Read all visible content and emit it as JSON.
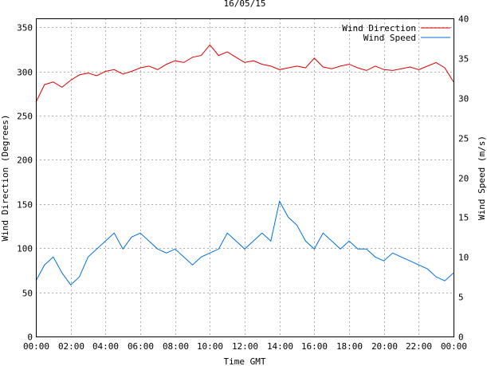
{
  "chart_data": {
    "type": "line",
    "title": "16/05/15",
    "xlabel": "Time GMT",
    "ylabel_left": "Wind Direction (Degrees)",
    "ylabel_right": "Wind Speed (m/s)",
    "x_ticks": [
      "00:00",
      "02:00",
      "04:00",
      "06:00",
      "08:00",
      "10:00",
      "12:00",
      "14:00",
      "16:00",
      "18:00",
      "20:00",
      "22:00",
      "00:00"
    ],
    "x_range_hours": [
      0,
      24
    ],
    "y_left_range": [
      0,
      360
    ],
    "y_left_ticks": [
      0,
      50,
      100,
      150,
      200,
      250,
      300,
      350
    ],
    "y_right_range": [
      0,
      40
    ],
    "y_right_ticks": [
      0,
      5,
      10,
      15,
      20,
      25,
      30,
      35,
      40
    ],
    "grid": true,
    "legend_position": "top-right",
    "series": [
      {
        "name": "Wind Direction",
        "axis": "left",
        "color": "#dd0000",
        "x_hours": [
          0,
          0.5,
          1,
          1.5,
          2,
          2.5,
          3,
          3.5,
          4,
          4.5,
          5,
          5.5,
          6,
          6.5,
          7,
          7.5,
          8,
          8.5,
          9,
          9.5,
          10,
          10.5,
          11,
          11.5,
          12,
          12.5,
          13,
          13.5,
          14,
          14.5,
          15,
          15.5,
          16,
          16.5,
          17,
          17.5,
          18,
          18.5,
          19,
          19.5,
          20,
          20.5,
          21,
          21.5,
          22,
          22.5,
          23,
          23.5,
          24
        ],
        "values": [
          265,
          285,
          288,
          282,
          290,
          296,
          298,
          295,
          300,
          302,
          297,
          300,
          304,
          306,
          302,
          308,
          312,
          310,
          316,
          318,
          330,
          318,
          322,
          316,
          310,
          312,
          308,
          306,
          302,
          304,
          306,
          304,
          315,
          305,
          303,
          306,
          308,
          304,
          301,
          306,
          302,
          301,
          303,
          305,
          302,
          306,
          310,
          304,
          288
        ]
      },
      {
        "name": "Wind Speed",
        "axis": "right",
        "color": "#0070dd",
        "x_hours": [
          0,
          0.5,
          1,
          1.5,
          2,
          2.5,
          3,
          3.5,
          4,
          4.5,
          5,
          5.5,
          6,
          6.5,
          7,
          7.5,
          8,
          8.5,
          9,
          9.5,
          10,
          10.5,
          11,
          11.5,
          12,
          12.5,
          13,
          13.5,
          14,
          14.5,
          15,
          15.5,
          16,
          16.5,
          17,
          17.5,
          18,
          18.5,
          19,
          19.5,
          20,
          20.5,
          21,
          21.5,
          22,
          22.5,
          23,
          23.5,
          24
        ],
        "values": [
          7,
          9,
          10,
          8,
          6.5,
          7.5,
          10,
          11,
          12,
          13,
          11,
          12.5,
          13,
          12,
          11,
          10.5,
          11,
          10,
          9,
          10,
          10.5,
          11,
          13,
          12,
          11,
          12,
          13,
          12,
          17,
          15,
          14,
          12,
          11,
          13,
          12,
          11,
          12,
          11,
          11,
          10,
          9.5,
          10.5,
          10,
          9.5,
          9,
          8.5,
          7.5,
          7,
          8
        ]
      }
    ]
  }
}
